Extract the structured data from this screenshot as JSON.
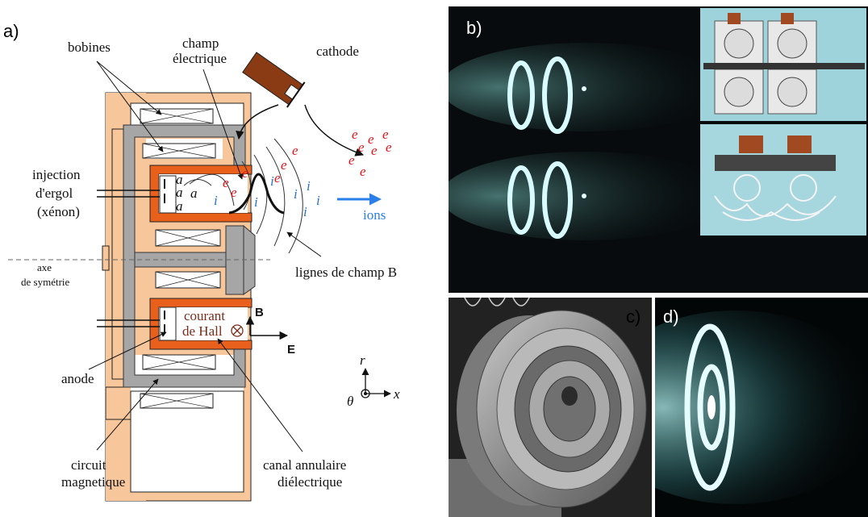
{
  "panel_a": {
    "panel_label": "a)",
    "labels": {
      "bobines": "bobines",
      "champ_line1": "champ",
      "champ_line2": "électrique",
      "cathode": "cathode",
      "injection_line1": "injection",
      "injection_line2": "d'ergol",
      "injection_line3": "(xénon)",
      "ions": "ions",
      "axe_line1": "axe",
      "axe_line2": "de symétrie",
      "lignes": "lignes de champ B",
      "courant_line1": "courant",
      "courant_line2": "de Hall",
      "B": "B",
      "E": "E",
      "anode": "anode",
      "circuit_line1": "circuit",
      "circuit_line2": "magnetique",
      "canal_line1": "canal annulaire",
      "canal_line2": "diélectrique",
      "r": "r",
      "theta": "θ",
      "x": "x",
      "a": "a",
      "e": "e",
      "i": "i"
    },
    "colors": {
      "body": "#f7c79b",
      "circuit": "#a6a6a6",
      "channel": "#e8601c",
      "cathode": "#8b3b13",
      "electron": "#e0151b",
      "ion": "#2b73d2",
      "ion_arrow": "#2a7fe8",
      "hall": "#7a2e1a"
    }
  },
  "panel_b": {
    "panel_label": "b)"
  },
  "panel_c": {
    "panel_label": "c)"
  },
  "panel_d": {
    "panel_label": "d)"
  }
}
